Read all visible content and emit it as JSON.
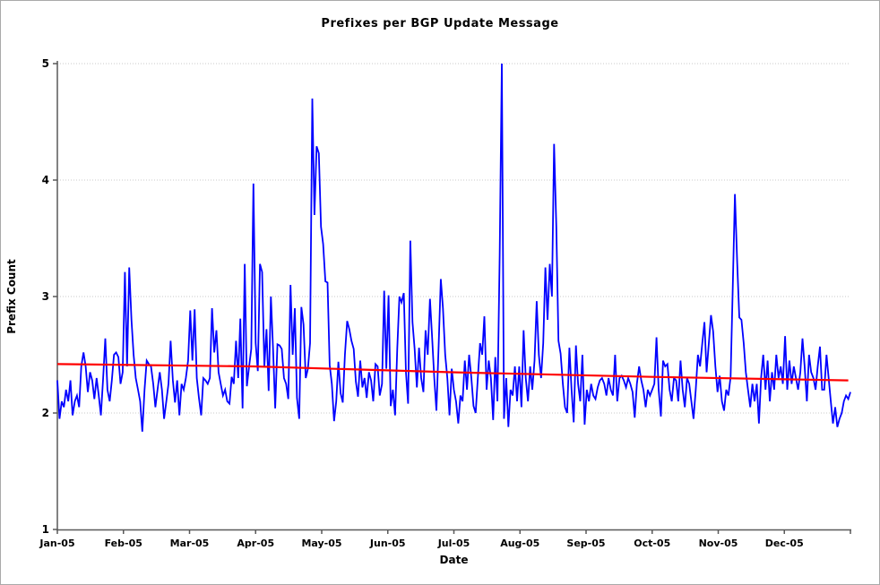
{
  "colors": {
    "background": "#ffffff",
    "frame": "#a9a9a9",
    "axis": "#595959",
    "grid": "#c9c9c9",
    "text": "#000000",
    "series_blue": "#0000ff",
    "trend_red": "#ff0000"
  },
  "chart_data": {
    "type": "line",
    "title": "Prefixes per BGP Update Message",
    "xlabel": "Date",
    "ylabel": "Prefix Count",
    "ylim": [
      1,
      5
    ],
    "yticks": [
      1,
      2,
      3,
      4,
      5
    ],
    "x_tick_labels": [
      "Jan-05",
      "Feb-05",
      "Mar-05",
      "Apr-05",
      "May-05",
      "Jun-05",
      "Jul-05",
      "Aug-05",
      "Sep-05",
      "Oct-05",
      "Nov-05",
      "Dec-05"
    ],
    "x_range_days": 365,
    "grid": "horizontal dotted gridlines at 2,3,4,5",
    "legend_position": "none",
    "series": [
      {
        "name": "daily-prefixes-per-update",
        "color": "#0000ff",
        "x_unit": "day-of-year-2005",
        "values": [
          2.28,
          1.95,
          2.1,
          2.05,
          2.2,
          2.1,
          2.28,
          1.98,
          2.1,
          2.15,
          2.05,
          2.4,
          2.52,
          2.4,
          2.18,
          2.35,
          2.28,
          2.12,
          2.3,
          2.15,
          1.98,
          2.3,
          2.64,
          2.2,
          2.1,
          2.28,
          2.5,
          2.52,
          2.48,
          2.25,
          2.35,
          3.21,
          2.4,
          3.25,
          2.8,
          2.5,
          2.3,
          2.2,
          2.1,
          1.84,
          2.2,
          2.45,
          2.42,
          2.4,
          2.25,
          2.05,
          2.2,
          2.35,
          2.2,
          1.95,
          2.1,
          2.25,
          2.62,
          2.28,
          2.09,
          2.28,
          1.98,
          2.25,
          2.2,
          2.3,
          2.45,
          2.88,
          2.45,
          2.89,
          2.3,
          2.13,
          1.98,
          2.3,
          2.28,
          2.25,
          2.3,
          2.9,
          2.52,
          2.71,
          2.35,
          2.25,
          2.15,
          2.2,
          2.1,
          2.08,
          2.31,
          2.25,
          2.62,
          2.3,
          2.81,
          2.04,
          3.28,
          2.23,
          2.4,
          2.55,
          3.97,
          2.6,
          2.36,
          3.28,
          3.21,
          2.4,
          2.72,
          2.19,
          3.0,
          2.55,
          2.04,
          2.59,
          2.58,
          2.55,
          2.3,
          2.25,
          2.12,
          3.1,
          2.5,
          2.9,
          2.13,
          1.95,
          2.91,
          2.76,
          2.3,
          2.38,
          2.6,
          4.7,
          3.7,
          4.29,
          4.23,
          3.6,
          3.45,
          3.13,
          3.12,
          2.41,
          2.25,
          1.93,
          2.1,
          2.44,
          2.17,
          2.09,
          2.5,
          2.79,
          2.72,
          2.62,
          2.55,
          2.27,
          2.14,
          2.45,
          2.22,
          2.3,
          2.13,
          2.35,
          2.28,
          2.1,
          2.42,
          2.4,
          2.15,
          2.25,
          3.05,
          2.38,
          3.01,
          2.06,
          2.2,
          1.98,
          2.55,
          3.0,
          2.95,
          3.03,
          2.35,
          2.08,
          3.48,
          2.78,
          2.55,
          2.22,
          2.56,
          2.3,
          2.18,
          2.71,
          2.5,
          2.98,
          2.65,
          2.3,
          2.02,
          2.58,
          3.15,
          2.9,
          2.5,
          2.3,
          1.98,
          2.38,
          2.2,
          2.1,
          1.91,
          2.15,
          2.1,
          2.45,
          2.2,
          2.5,
          2.3,
          2.06,
          2.0,
          2.3,
          2.6,
          2.5,
          2.83,
          2.2,
          2.45,
          2.3,
          1.94,
          2.48,
          2.1,
          3.35,
          5.0,
          1.95,
          2.3,
          1.88,
          2.2,
          2.15,
          2.4,
          2.1,
          2.4,
          2.05,
          2.71,
          2.3,
          2.1,
          2.4,
          2.2,
          2.45,
          2.96,
          2.5,
          2.3,
          2.6,
          3.25,
          2.8,
          3.28,
          3.0,
          4.31,
          3.6,
          2.62,
          2.51,
          2.25,
          2.05,
          2.0,
          2.56,
          2.2,
          1.92,
          2.58,
          2.25,
          2.1,
          2.5,
          1.9,
          2.2,
          2.1,
          2.25,
          2.15,
          2.12,
          2.22,
          2.28,
          2.3,
          2.25,
          2.15,
          2.3,
          2.2,
          2.15,
          2.5,
          2.1,
          2.3,
          2.32,
          2.28,
          2.22,
          2.3,
          2.25,
          2.18,
          1.96,
          2.25,
          2.4,
          2.28,
          2.2,
          2.05,
          2.2,
          2.15,
          2.2,
          2.25,
          2.65,
          2.2,
          1.97,
          2.45,
          2.4,
          2.42,
          2.2,
          2.1,
          2.3,
          2.28,
          2.1,
          2.45,
          2.2,
          2.05,
          2.3,
          2.25,
          2.1,
          1.95,
          2.2,
          2.5,
          2.4,
          2.6,
          2.78,
          2.35,
          2.6,
          2.84,
          2.7,
          2.4,
          2.18,
          2.32,
          2.1,
          2.02,
          2.2,
          2.15,
          2.31,
          3.08,
          3.88,
          3.3,
          2.82,
          2.8,
          2.6,
          2.35,
          2.2,
          2.05,
          2.25,
          2.1,
          2.25,
          1.91,
          2.3,
          2.5,
          2.2,
          2.45,
          2.1,
          2.35,
          2.2,
          2.5,
          2.3,
          2.4,
          2.25,
          2.66,
          2.2,
          2.45,
          2.25,
          2.4,
          2.3,
          2.2,
          2.35,
          2.64,
          2.4,
          2.1,
          2.5,
          2.35,
          2.3,
          2.2,
          2.4,
          2.57,
          2.2,
          2.2,
          2.5,
          2.3,
          2.1,
          1.91,
          2.05,
          1.88,
          1.95,
          2.0,
          2.1,
          2.15,
          2.12,
          2.18
        ]
      },
      {
        "name": "trend-line",
        "color": "#ff0000",
        "x_unit": "day-of-year-2005",
        "points": [
          [
            1,
            2.42
          ],
          [
            91,
            2.4
          ],
          [
            182,
            2.35
          ],
          [
            274,
            2.31
          ],
          [
            364,
            2.28
          ]
        ]
      }
    ]
  }
}
